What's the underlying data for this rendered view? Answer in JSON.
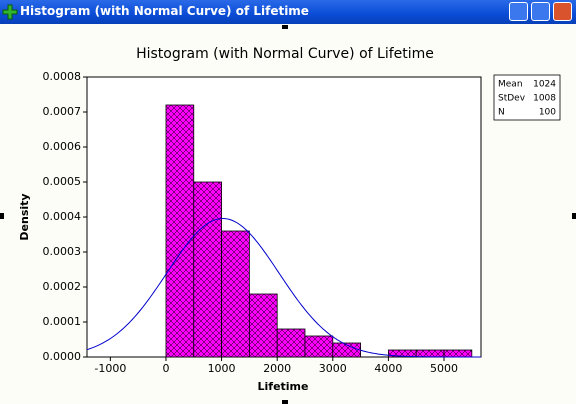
{
  "window_title": "Histogram (with Normal Curve) of Lifetime",
  "chart_data": {
    "type": "histogram",
    "title": "Histogram (with Normal Curve) of Lifetime",
    "xlabel": "Lifetime",
    "ylabel": "Density",
    "bins": [
      0,
      500,
      1000,
      1500,
      2000,
      2500,
      3000,
      3500,
      4000,
      4500,
      5000,
      5500
    ],
    "values": [
      0.00072,
      0.0005,
      0.00036,
      0.00018,
      8e-05,
      6e-05,
      4e-05,
      0,
      2e-05,
      2e-05,
      2e-05
    ],
    "color": "#ff00ff",
    "curve_color": "#0000cc",
    "xlim": [
      -1420,
      5665
    ],
    "ylim": [
      0,
      0.0008
    ],
    "xticks": [
      -1000,
      0,
      1000,
      2000,
      3000,
      4000,
      5000
    ],
    "yticks": [
      {
        "value": 0,
        "label": "0.0000"
      },
      0.0001,
      0.0002,
      0.0003,
      0.0004,
      0.0005,
      0.0006,
      0.0007,
      0.0008
    ],
    "stats": [
      {
        "label": "Mean",
        "value": 1024
      },
      {
        "label": "StDev",
        "value": 1008
      },
      {
        "label": "N",
        "value": 100
      }
    ]
  }
}
